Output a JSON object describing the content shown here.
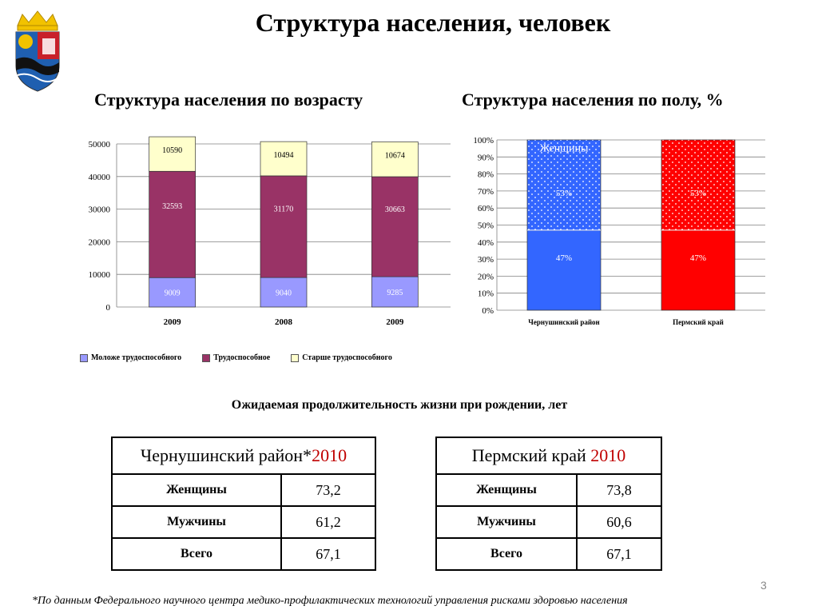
{
  "page": {
    "title": "Структура населения, человек",
    "page_number": "3"
  },
  "footnote": "*По данным Федерального научного центра медико-профилактических технологий управления рисками здоровью населения",
  "colors": {
    "young": "#9999ff",
    "working": "#993366",
    "old": "#ffffcc",
    "blue_district": "#3366ff",
    "red_krai": "#ff0000",
    "year_accent": "#c00000"
  },
  "chart_data": [
    {
      "type": "bar",
      "stacked": true,
      "title": "Структура населения по возрасту",
      "categories": [
        "2009",
        "2008",
        "2009"
      ],
      "series": [
        {
          "name": "Моложе трудоспособного",
          "values": [
            9009,
            9040,
            9285
          ],
          "color": "#9999ff"
        },
        {
          "name": "Трудоспособное",
          "values": [
            32593,
            31170,
            30663
          ],
          "color": "#993366"
        },
        {
          "name": "Старше трудоспособного",
          "values": [
            10590,
            10494,
            10674
          ],
          "color": "#ffffcc"
        }
      ],
      "ylim": [
        0,
        50000
      ],
      "yticks": [
        "0",
        "10000",
        "20000",
        "30000",
        "40000",
        "50000"
      ],
      "grid": true,
      "legend": "bottom"
    },
    {
      "type": "bar",
      "stacked": true,
      "title": "Структура населения по полу, %",
      "categories": [
        "Чернушинский район",
        "Пермский край"
      ],
      "series": [
        {
          "values": [
            47,
            47
          ],
          "labels": [
            "47%",
            "47%"
          ]
        },
        {
          "name": "Женщины",
          "values": [
            53,
            53
          ],
          "labels": [
            "53%",
            "53%"
          ]
        }
      ],
      "ylim": [
        0,
        100
      ],
      "yticks": [
        "0%",
        "10%",
        "20%",
        "30%",
        "40%",
        "50%",
        "60%",
        "70%",
        "80%",
        "90%",
        "100%"
      ],
      "grid": true,
      "series_label_shown": "Женщины"
    }
  ],
  "life_expectancy": {
    "title": "Ожидаемая продолжительность жизни при рождении, лет",
    "tables": [
      {
        "header_text": "Чернушинский район*",
        "header_year": "2010",
        "rows": [
          {
            "label": "Женщины",
            "value": "73,2"
          },
          {
            "label": "Мужчины",
            "value": "61,2"
          },
          {
            "label": "Всего",
            "value": "67,1"
          }
        ]
      },
      {
        "header_text": "Пермский край ",
        "header_year": "2010",
        "rows": [
          {
            "label": "Женщины",
            "value": "73,8"
          },
          {
            "label": "Мужчины",
            "value": "60,6"
          },
          {
            "label": "Всего",
            "value": "67,1"
          }
        ]
      }
    ]
  }
}
